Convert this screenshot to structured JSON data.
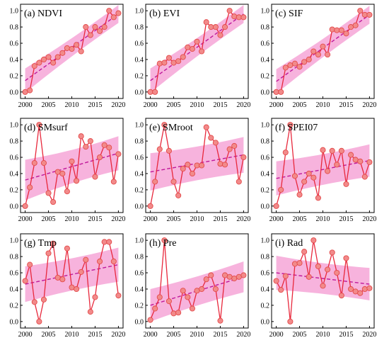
{
  "chart_data": [
    {
      "type": "line",
      "title": "(a) NDVI",
      "x": [
        2000,
        2001,
        2002,
        2003,
        2004,
        2005,
        2006,
        2007,
        2008,
        2009,
        2010,
        2011,
        2012,
        2013,
        2014,
        2015,
        2016,
        2017,
        2018,
        2019,
        2020
      ],
      "values": [
        0.0,
        0.02,
        0.32,
        0.36,
        0.4,
        0.43,
        0.36,
        0.43,
        0.48,
        0.54,
        0.53,
        0.58,
        0.5,
        0.8,
        0.7,
        0.8,
        0.75,
        0.8,
        1.0,
        0.92,
        0.97
      ],
      "trend": [
        0.14,
        0.96
      ],
      "band_halfwidth": [
        0.15,
        0.11
      ],
      "xlim": [
        1999,
        2021
      ],
      "ylim": [
        -0.08,
        1.08
      ],
      "xticks": [
        "2000",
        "2005",
        "2010",
        "2015",
        "2020"
      ],
      "yticks": [
        "0.0",
        "0.2",
        "0.4",
        "0.6",
        "0.8",
        "1.0"
      ]
    },
    {
      "type": "line",
      "title": "(b) EVI",
      "x": [
        2000,
        2001,
        2002,
        2003,
        2004,
        2005,
        2006,
        2007,
        2008,
        2009,
        2010,
        2011,
        2012,
        2013,
        2014,
        2015,
        2016,
        2017,
        2018,
        2019,
        2020
      ],
      "values": [
        0.0,
        0.0,
        0.35,
        0.36,
        0.42,
        0.36,
        0.38,
        0.43,
        0.55,
        0.53,
        0.62,
        0.5,
        0.86,
        0.8,
        0.8,
        0.7,
        0.8,
        1.0,
        0.93,
        0.92,
        0.92
      ],
      "trend": [
        0.14,
        0.96
      ],
      "band_halfwidth": [
        0.15,
        0.11
      ],
      "xlim": [
        1999,
        2021
      ],
      "ylim": [
        -0.08,
        1.08
      ],
      "xticks": [
        "2000",
        "2005",
        "2010",
        "2015",
        "2020"
      ],
      "yticks": [
        "0.0",
        "0.2",
        "0.4",
        "0.6",
        "0.8",
        "1.0"
      ]
    },
    {
      "type": "line",
      "title": "(c) SIF",
      "x": [
        2000,
        2001,
        2002,
        2003,
        2004,
        2005,
        2006,
        2007,
        2008,
        2009,
        2010,
        2011,
        2012,
        2013,
        2014,
        2015,
        2016,
        2017,
        2018,
        2019,
        2020
      ],
      "values": [
        0.0,
        0.0,
        0.3,
        0.33,
        0.35,
        0.31,
        0.37,
        0.4,
        0.5,
        0.46,
        0.56,
        0.46,
        0.77,
        0.76,
        0.76,
        0.72,
        0.8,
        0.82,
        1.0,
        0.95,
        0.95
      ],
      "trend": [
        0.13,
        0.95
      ],
      "band_halfwidth": [
        0.15,
        0.11
      ],
      "xlim": [
        1999,
        2021
      ],
      "ylim": [
        -0.08,
        1.08
      ],
      "xticks": [
        "2000",
        "2005",
        "2010",
        "2015",
        "2020"
      ],
      "yticks": [
        "0.0",
        "0.2",
        "0.4",
        "0.6",
        "0.8",
        "1.0"
      ]
    },
    {
      "type": "line",
      "title": "(d) SMsurf",
      "x": [
        2000,
        2001,
        2002,
        2003,
        2004,
        2005,
        2006,
        2007,
        2008,
        2009,
        2010,
        2011,
        2012,
        2013,
        2014,
        2015,
        2016,
        2017,
        2018,
        2019,
        2020
      ],
      "values": [
        0.0,
        0.23,
        0.53,
        1.0,
        0.53,
        0.16,
        0.05,
        0.42,
        0.4,
        0.18,
        0.55,
        0.31,
        0.86,
        0.73,
        0.8,
        0.36,
        0.6,
        0.75,
        0.72,
        0.3,
        0.64
      ],
      "trend": [
        0.32,
        0.65
      ],
      "band_halfwidth": [
        0.25,
        0.21
      ],
      "xlim": [
        1999,
        2021
      ],
      "ylim": [
        -0.08,
        1.08
      ],
      "xticks": [
        "2000",
        "2005",
        "2010",
        "2015",
        "2020"
      ],
      "yticks": [
        "0.0",
        "0.2",
        "0.4",
        "0.6",
        "0.8",
        "1.0"
      ]
    },
    {
      "type": "line",
      "title": "(e) SMroot",
      "x": [
        2000,
        2001,
        2002,
        2003,
        2004,
        2005,
        2006,
        2007,
        2008,
        2009,
        2010,
        2011,
        2012,
        2013,
        2014,
        2015,
        2016,
        2017,
        2018,
        2019,
        2020
      ],
      "values": [
        0.0,
        0.3,
        0.7,
        1.0,
        0.68,
        0.3,
        0.13,
        0.46,
        0.51,
        0.4,
        0.5,
        0.5,
        0.97,
        0.84,
        0.78,
        0.52,
        0.51,
        0.7,
        0.74,
        0.3,
        0.6
      ],
      "trend": [
        0.42,
        0.63
      ],
      "band_halfwidth": [
        0.23,
        0.22
      ],
      "xlim": [
        1999,
        2021
      ],
      "ylim": [
        -0.08,
        1.08
      ],
      "xticks": [
        "2000",
        "2005",
        "2010",
        "2015",
        "2020"
      ],
      "yticks": [
        "0.0",
        "0.2",
        "0.4",
        "0.6",
        "0.8",
        "1.0"
      ]
    },
    {
      "type": "line",
      "title": "(f) SPEI07",
      "x": [
        2000,
        2001,
        2002,
        2003,
        2004,
        2005,
        2006,
        2007,
        2008,
        2009,
        2010,
        2011,
        2012,
        2013,
        2014,
        2015,
        2016,
        2017,
        2018,
        2019,
        2020
      ],
      "values": [
        0.0,
        0.2,
        0.66,
        1.0,
        0.37,
        0.14,
        0.3,
        0.4,
        0.35,
        0.1,
        0.69,
        0.43,
        0.68,
        0.51,
        0.68,
        0.27,
        0.63,
        0.57,
        0.55,
        0.36,
        0.54
      ],
      "trend": [
        0.34,
        0.56
      ],
      "band_halfwidth": [
        0.21,
        0.2
      ],
      "xlim": [
        1999,
        2021
      ],
      "ylim": [
        -0.08,
        1.08
      ],
      "xticks": [
        "2000",
        "2005",
        "2010",
        "2015",
        "2020"
      ],
      "yticks": [
        "0.0",
        "0.2",
        "0.4",
        "0.6",
        "0.8",
        "1.0"
      ]
    },
    {
      "type": "line",
      "title": "(g) Tmp",
      "x": [
        2000,
        2001,
        2002,
        2003,
        2004,
        2005,
        2006,
        2007,
        2008,
        2009,
        2010,
        2011,
        2012,
        2013,
        2014,
        2015,
        2016,
        2017,
        2018,
        2019,
        2020
      ],
      "values": [
        0.5,
        0.7,
        0.24,
        0.0,
        0.27,
        0.84,
        0.96,
        0.54,
        0.52,
        0.9,
        0.42,
        0.4,
        0.61,
        0.76,
        0.12,
        0.3,
        0.74,
        0.98,
        0.98,
        0.74,
        0.32
      ],
      "trend": [
        0.46,
        0.7
      ],
      "band_halfwidth": [
        0.22,
        0.21
      ],
      "xlim": [
        1999,
        2021
      ],
      "ylim": [
        -0.08,
        1.08
      ],
      "xticks": [
        "2000",
        "2005",
        "2010",
        "2015",
        "2020"
      ],
      "yticks": [
        "0.0",
        "0.2",
        "0.4",
        "0.6",
        "0.8",
        "1.0"
      ]
    },
    {
      "type": "line",
      "title": "(h) Pre",
      "x": [
        2000,
        2001,
        2002,
        2003,
        2004,
        2005,
        2006,
        2007,
        2008,
        2009,
        2010,
        2011,
        2012,
        2013,
        2014,
        2015,
        2016,
        2017,
        2018,
        2019,
        2020
      ],
      "values": [
        0.02,
        0.16,
        0.3,
        1.0,
        0.25,
        0.1,
        0.11,
        0.38,
        0.3,
        0.16,
        0.38,
        0.4,
        0.52,
        0.57,
        0.4,
        0.01,
        0.57,
        0.55,
        0.53,
        0.55,
        0.57
      ],
      "trend": [
        0.2,
        0.55
      ],
      "band_halfwidth": [
        0.2,
        0.19
      ],
      "xlim": [
        1999,
        2021
      ],
      "ylim": [
        -0.08,
        1.08
      ],
      "xticks": [
        "2000",
        "2005",
        "2010",
        "2015",
        "2020"
      ],
      "yticks": [
        "0.0",
        "0.2",
        "0.4",
        "0.6",
        "0.8",
        "1.0"
      ]
    },
    {
      "type": "line",
      "title": "(i) Rad",
      "x": [
        2000,
        2001,
        2002,
        2003,
        2004,
        2005,
        2006,
        2007,
        2008,
        2009,
        2010,
        2011,
        2012,
        2013,
        2014,
        2015,
        2016,
        2017,
        2018,
        2019,
        2020
      ],
      "values": [
        0.5,
        0.39,
        0.56,
        0.0,
        0.71,
        0.72,
        0.86,
        0.55,
        1.0,
        0.68,
        0.44,
        0.64,
        0.85,
        0.6,
        0.32,
        0.78,
        0.4,
        0.37,
        0.35,
        0.4,
        0.41
      ],
      "trend": [
        0.6,
        0.46
      ],
      "band_halfwidth": [
        0.21,
        0.2
      ],
      "xlim": [
        1999,
        2021
      ],
      "ylim": [
        -0.08,
        1.08
      ],
      "xticks": [
        "2000",
        "2005",
        "2010",
        "2015",
        "2020"
      ],
      "yticks": [
        "0.0",
        "0.2",
        "0.4",
        "0.6",
        "0.8",
        "1.0"
      ]
    }
  ],
  "colors": {
    "line": "#e8283c",
    "marker_fill": "#f28a8a",
    "marker_edge": "#e34b4b",
    "trend": "#c0189a",
    "band": "#f6a6d7"
  }
}
